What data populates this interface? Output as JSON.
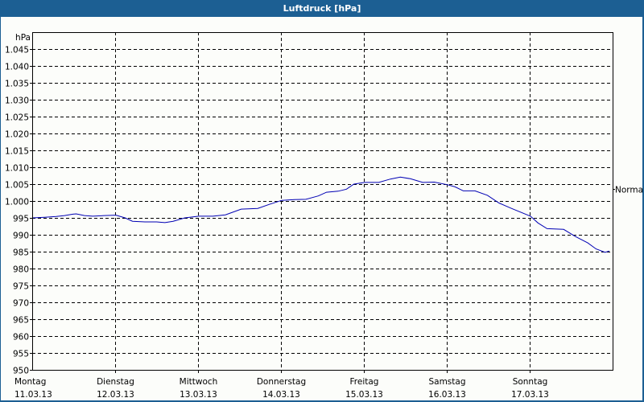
{
  "window": {
    "title": "Luftdruck [hPa]"
  },
  "colors": {
    "header_bg": "#1c5f93",
    "panel_bg": "#fcfdfa",
    "line": "#0000b4",
    "grid": "#000000"
  },
  "chart_data": {
    "type": "line",
    "title": "Luftdruck [hPa]",
    "xlabel": "",
    "ylabel": "hPa",
    "ylim": [
      950,
      1050
    ],
    "y_ticks": [
      "1.045",
      "1.040",
      "1.035",
      "1.030",
      "1.025",
      "1.020",
      "1.015",
      "1.010",
      "1.005",
      "1.000",
      "995",
      "990",
      "985",
      "980",
      "975",
      "970",
      "965",
      "960",
      "955",
      "950"
    ],
    "y_tick_values": [
      1045,
      1040,
      1035,
      1030,
      1025,
      1020,
      1015,
      1010,
      1005,
      1000,
      995,
      990,
      985,
      980,
      975,
      970,
      965,
      960,
      955,
      950
    ],
    "categories": [
      {
        "day": "Montag",
        "date": "11.03.13"
      },
      {
        "day": "Dienstag",
        "date": "12.03.13"
      },
      {
        "day": "Mittwoch",
        "date": "13.03.13"
      },
      {
        "day": "Donnerstag",
        "date": "14.03.13"
      },
      {
        "day": "Freitag",
        "date": "15.03.13"
      },
      {
        "day": "Samstag",
        "date": "16.03.13"
      },
      {
        "day": "Sonntag",
        "date": "17.03.13"
      }
    ],
    "annotations": [
      {
        "label": "Normal",
        "value": 1003.5
      }
    ],
    "grid": true,
    "legend": null,
    "series": [
      {
        "name": "Luftdruck",
        "x_days": [
          0.0,
          0.15,
          0.29,
          0.39,
          0.49,
          0.53,
          0.63,
          0.73,
          0.87,
          1.01,
          1.12,
          1.21,
          1.36,
          1.5,
          1.6,
          1.7,
          1.84,
          2.01,
          2.18,
          2.33,
          2.52,
          2.72,
          2.86,
          3.01,
          3.16,
          3.3,
          3.45,
          3.55,
          3.69,
          3.79,
          3.88,
          4.01,
          4.18,
          4.32,
          4.44,
          4.56,
          4.71,
          4.85,
          5.01,
          5.1,
          5.2,
          5.34,
          5.49,
          5.63,
          5.78,
          6.01,
          6.1,
          6.21,
          6.41,
          6.55,
          6.7,
          6.8,
          6.91,
          6.96
        ],
        "values": [
          995.0,
          995.2,
          995.4,
          995.7,
          996.1,
          996.2,
          995.7,
          995.5,
          995.7,
          995.8,
          995.0,
          994.0,
          993.8,
          993.8,
          993.6,
          994.0,
          995.0,
          995.5,
          995.5,
          995.9,
          997.6,
          997.8,
          999.0,
          1000.2,
          1000.4,
          1000.5,
          1001.5,
          1002.6,
          1002.9,
          1003.5,
          1005.0,
          1005.5,
          1005.5,
          1006.5,
          1007.1,
          1006.6,
          1005.5,
          1005.6,
          1004.8,
          1004.2,
          1003.0,
          1003.0,
          1001.7,
          999.4,
          997.8,
          995.5,
          993.5,
          991.8,
          991.6,
          989.5,
          987.6,
          985.8,
          984.8,
          985.2
        ]
      }
    ]
  }
}
